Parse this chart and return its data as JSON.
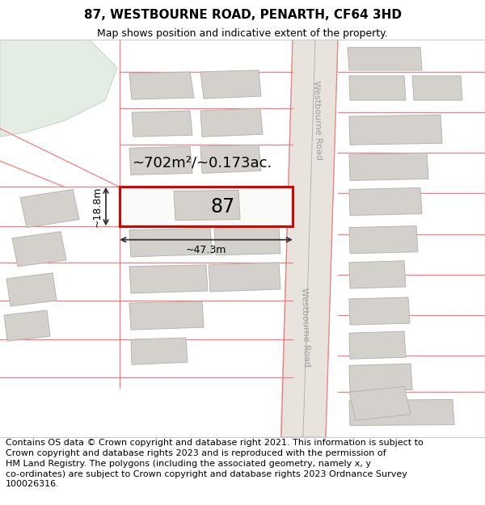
{
  "title": "87, WESTBOURNE ROAD, PENARTH, CF64 3HD",
  "subtitle": "Map shows position and indicative extent of the property.",
  "footer_line1": "Contains OS data © Crown copyright and database right 2021. This information is subject to",
  "footer_line2": "Crown copyright and database rights 2023 and is reproduced with the permission of",
  "footer_line3": "HM Land Registry. The polygons (including the associated geometry, namely x, y",
  "footer_line4": "co-ordinates) are subject to Crown copyright and database rights 2023 Ordnance Survey",
  "footer_line5": "100026316.",
  "map_bg": "#f7f4f0",
  "building_fill": "#d4d0cb",
  "building_edge": "#b8b4af",
  "plot_outline_color": "#dd0000",
  "green_area_color": "#e4ede4",
  "green_area_edge": "#c8d8c8",
  "road_fill": "#e8e3dc",
  "road_edge": "#c8c3bc",
  "boundary_color": "#f08080",
  "label_87": "87",
  "area_label": "~702m²/~0.173ac.",
  "width_label": "~47.3m",
  "height_label": "~18.8m",
  "road_label": "Westbourne Road",
  "title_fontsize": 11,
  "subtitle_fontsize": 9,
  "footer_fontsize": 8,
  "annotation_color": "#333333"
}
